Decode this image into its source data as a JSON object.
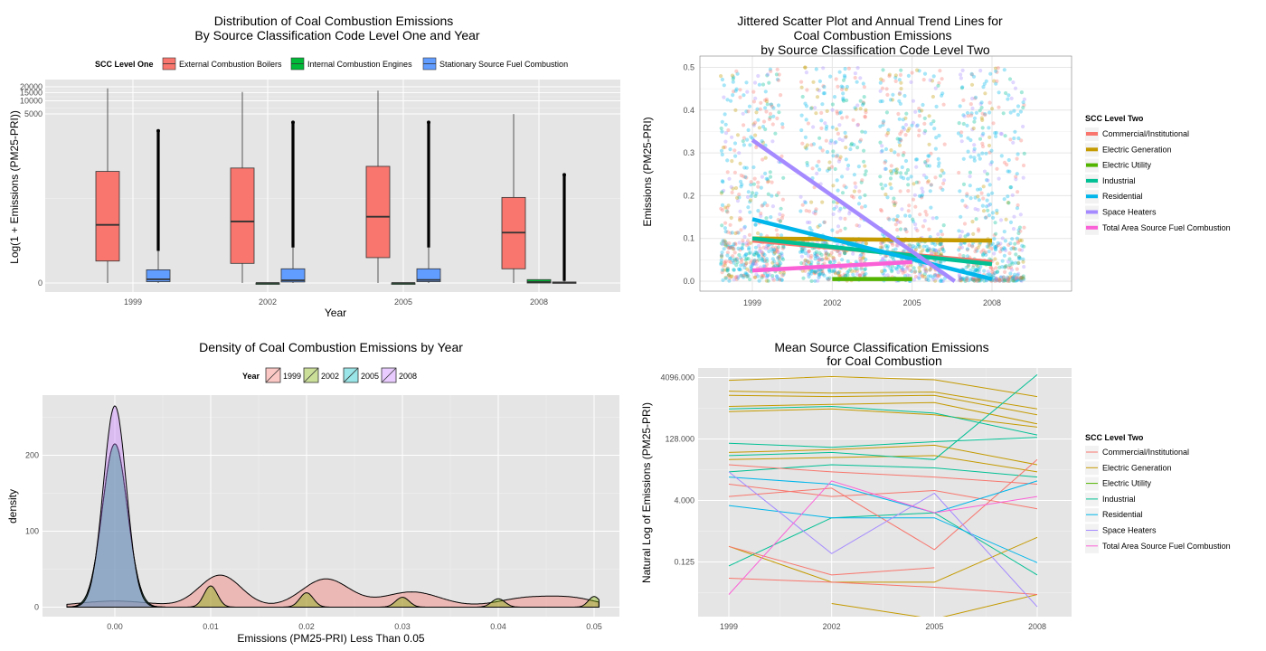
{
  "chart_data": [
    {
      "type": "box",
      "title": "Distribution of Coal Combustion Emissions",
      "subtitle": "By Source Classification Code Level One and Year",
      "xlabel": "Year",
      "ylabel": "Log(1 + Emissions (PM25-PRI))",
      "categories": [
        "1999",
        "2002",
        "2005",
        "2008"
      ],
      "yticks": [
        "0",
        "5000",
        "10000",
        "15000",
        "20000"
      ],
      "legend": {
        "title": "SCC Level One",
        "position": "top",
        "entries": [
          {
            "label": "External Combustion Boilers",
            "color": "#f8766d"
          },
          {
            "label": "Internal Combustion Engines",
            "color": "#00ba38"
          },
          {
            "label": "Stationary Source Fuel Combustion",
            "color": "#619cff"
          }
        ]
      },
      "series": [
        {
          "name": "External Combustion Boilers",
          "color": "#f8766d",
          "boxes": [
            {
              "year": "1999",
              "min": 0,
              "q1": 650,
              "median": 1720,
              "q3": 3300,
              "max": 18500
            },
            {
              "year": "2002",
              "min": 0,
              "q1": 580,
              "median": 1820,
              "q3": 3400,
              "max": 15500
            },
            {
              "year": "2005",
              "min": 0,
              "q1": 750,
              "median": 1960,
              "q3": 3450,
              "max": 16500
            },
            {
              "year": "2008",
              "min": 0,
              "q1": 420,
              "median": 1490,
              "q3": 2530,
              "max": 5200
            }
          ]
        },
        {
          "name": "Internal Combustion Engines",
          "color": "#00ba38",
          "boxes": [
            {
              "year": "2002",
              "min": 0,
              "q1": 0,
              "median": 0,
              "q3": 0,
              "max": 0
            },
            {
              "year": "2005",
              "min": 0,
              "q1": 0,
              "median": 0,
              "q3": 0,
              "max": 0
            },
            {
              "year": "2008",
              "min": 0,
              "q1": 0,
              "median": 30,
              "q3": 100,
              "max": 100
            }
          ]
        },
        {
          "name": "Stationary Source Fuel Combustion",
          "color": "#619cff",
          "boxes": [
            {
              "year": "1999",
              "min": 0,
              "q1": 40,
              "median": 110,
              "q3": 390,
              "max": 950,
              "outlier_max": 4500
            },
            {
              "year": "2002",
              "min": 0,
              "q1": 30,
              "median": 80,
              "q3": 420,
              "max": 1050,
              "outlier_max": 4750
            },
            {
              "year": "2005",
              "min": 0,
              "q1": 40,
              "median": 90,
              "q3": 420,
              "max": 1050,
              "outlier_max": 4750
            },
            {
              "year": "2008",
              "min": 0,
              "q1": 0,
              "median": 10,
              "q3": 30,
              "max": 60,
              "outlier_max": 3200
            }
          ]
        }
      ]
    },
    {
      "type": "scatter",
      "title": "Jittered Scatter Plot and Annual Trend Lines for",
      "subtitle": "Coal Combustion Emissions",
      "subtitle2": "by Source Classification Code Level Two",
      "xlabel": "",
      "ylabel": "Emissions (PM25-PRI)",
      "xticks": [
        "1999",
        "2002",
        "2005",
        "2008"
      ],
      "yticks": [
        "0.0",
        "0.1",
        "0.2",
        "0.3",
        "0.4",
        "0.5"
      ],
      "ylim": [
        0,
        0.5
      ],
      "legend": {
        "title": "SCC Level Two",
        "position": "right",
        "entries": [
          {
            "label": "Commercial/Institutional",
            "color": "#f8766d"
          },
          {
            "label": "Electric Generation",
            "color": "#c49a00"
          },
          {
            "label": "Electric Utility",
            "color": "#53b400"
          },
          {
            "label": "Industrial",
            "color": "#00c094"
          },
          {
            "label": "Residential",
            "color": "#00b6eb"
          },
          {
            "label": "Space Heaters",
            "color": "#a58aff"
          },
          {
            "label": "Total Area Source Fuel Combustion",
            "color": "#fb61d7"
          }
        ]
      },
      "trend_lines": [
        {
          "name": "Commercial/Institutional",
          "color": "#f8766d",
          "x": [
            1999,
            2008
          ],
          "y": [
            0.095,
            0.045
          ]
        },
        {
          "name": "Electric Generation",
          "color": "#c49a00",
          "x": [
            1999,
            2008
          ],
          "y": [
            0.1,
            0.095
          ]
        },
        {
          "name": "Electric Utility",
          "color": "#53b400",
          "x": [
            2002,
            2005
          ],
          "y": [
            0.005,
            0.005
          ]
        },
        {
          "name": "Industrial",
          "color": "#00c094",
          "x": [
            1999,
            2008
          ],
          "y": [
            0.1,
            0.04
          ]
        },
        {
          "name": "Residential",
          "color": "#00b6eb",
          "x": [
            1999,
            2008
          ],
          "y": [
            0.145,
            0.005
          ]
        },
        {
          "name": "Space Heaters",
          "color": "#a58aff",
          "x": [
            1999,
            2006.6
          ],
          "y": [
            0.33,
            0.0
          ]
        },
        {
          "name": "Total Area Source Fuel Combustion",
          "color": "#fb61d7",
          "x": [
            1999,
            2005
          ],
          "y": [
            0.025,
            0.045
          ]
        }
      ]
    },
    {
      "type": "area",
      "title": "Density of Coal Combustion Emissions by Year",
      "xlabel": "Emissions (PM25-PRI) Less Than 0.05",
      "ylabel": "density",
      "xticks": [
        "0.00",
        "0.01",
        "0.02",
        "0.03",
        "0.04",
        "0.05"
      ],
      "yticks": [
        "0",
        "100",
        "200"
      ],
      "xlim": [
        -0.0048,
        0.0505
      ],
      "ylim": [
        -14,
        276
      ],
      "legend": {
        "title": "Year",
        "position": "top",
        "entries": [
          {
            "label": "1999",
            "color": "#f8766d"
          },
          {
            "label": "2002",
            "color": "#7cae00"
          },
          {
            "label": "2005",
            "color": "#00bfc4"
          },
          {
            "label": "2008",
            "color": "#c77cff"
          }
        ]
      },
      "series": [
        {
          "name": "1999",
          "color": "#f8766d",
          "peaks": [
            [
              0.0,
              8,
              0.004
            ],
            [
              0.011,
              42,
              0.0022
            ],
            [
              0.022,
              37,
              0.0025
            ],
            [
              0.031,
              20,
              0.003
            ],
            [
              0.043,
              12,
              0.003
            ],
            [
              0.048,
              10,
              0.0025
            ]
          ]
        },
        {
          "name": "2002",
          "color": "#7cae00",
          "peaks": [
            [
              0.0,
              215,
              0.0013
            ],
            [
              0.01,
              28,
              0.0007
            ],
            [
              0.02,
              19,
              0.0007
            ],
            [
              0.03,
              13,
              0.0007
            ],
            [
              0.04,
              11,
              0.0007
            ],
            [
              0.05,
              14,
              0.0006
            ]
          ]
        },
        {
          "name": "2005",
          "color": "#00bfc4",
          "peaks": [
            [
              0.0,
              215,
              0.0013
            ]
          ]
        },
        {
          "name": "2008",
          "color": "#c77cff",
          "peaks": [
            [
              0.0,
              265,
              0.0012
            ]
          ]
        }
      ]
    },
    {
      "type": "line",
      "title": "Mean Source Classification Emissions",
      "subtitle": "for Coal Combustion",
      "xlabel": "",
      "ylabel": "Natural Log of Emissions (PM25-PRI)",
      "xticks": [
        "1999",
        "2002",
        "2005",
        "2008"
      ],
      "yticks": [
        "0.125",
        "4.000",
        "128.000",
        "4096.000"
      ],
      "y_scale": "log2",
      "legend": {
        "title": "SCC Level Two",
        "position": "right",
        "entries": [
          {
            "label": "Commercial/Institutional",
            "color": "#f8766d"
          },
          {
            "label": "Electric Generation",
            "color": "#c49a00"
          },
          {
            "label": "Electric Utility",
            "color": "#53b400"
          },
          {
            "label": "Industrial",
            "color": "#00c094"
          },
          {
            "label": "Residential",
            "color": "#00b6eb"
          },
          {
            "label": "Space Heaters",
            "color": "#a58aff"
          },
          {
            "label": "Total Area Source Fuel Combustion",
            "color": "#fb61d7"
          }
        ]
      },
      "series": [
        {
          "name": "Electric Generation",
          "color": "#c49a00",
          "values": [
            1900,
            1700,
            1800,
            700
          ]
        },
        {
          "name": "Electric Generation",
          "color": "#c49a00",
          "values": [
            1500,
            1400,
            1500,
            500
          ]
        },
        {
          "name": "Electric Generation",
          "color": "#c49a00",
          "values": [
            800,
            900,
            1000,
            300
          ]
        },
        {
          "name": "Electric Generation",
          "color": "#c49a00",
          "values": [
            3500,
            4300,
            3600,
            1400
          ]
        },
        {
          "name": "Electric Generation",
          "color": "#c49a00",
          "values": [
            600,
            700,
            500,
            250
          ]
        },
        {
          "name": "Electric Generation",
          "color": "#c49a00",
          "values": [
            60,
            70,
            90,
            30
          ]
        },
        {
          "name": "Electric Generation",
          "color": "#c49a00",
          "values": [
            40,
            45,
            50,
            20
          ]
        },
        {
          "name": "Electric Generation",
          "color": "#c49a00",
          "values": [
            0.3,
            0.04,
            0.04,
            0.5
          ]
        },
        {
          "name": "Electric Generation",
          "color": "#c49a00",
          "values": [
            null,
            0.012,
            0.005,
            0.02
          ]
        },
        {
          "name": "Electric Utility",
          "color": "#53b400",
          "values": [
            null,
            0.0015,
            0.0015,
            null
          ]
        },
        {
          "name": "Industrial",
          "color": "#00c094",
          "values": [
            100,
            80,
            110,
            140
          ]
        },
        {
          "name": "Industrial",
          "color": "#00c094",
          "values": [
            50,
            60,
            40,
            4800
          ]
        },
        {
          "name": "Industrial",
          "color": "#00c094",
          "values": [
            20,
            30,
            25,
            15
          ]
        },
        {
          "name": "Industrial",
          "color": "#00c094",
          "values": [
            0.1,
            1.5,
            2.0,
            0.06
          ]
        },
        {
          "name": "Industrial",
          "color": "#00c094",
          "values": [
            700,
            800,
            550,
            160
          ]
        },
        {
          "name": "Commercial/Institutional",
          "color": "#f8766d",
          "values": [
            30,
            20,
            15,
            10
          ]
        },
        {
          "name": "Commercial/Institutional",
          "color": "#f8766d",
          "values": [
            10,
            5,
            7,
            2.5
          ]
        },
        {
          "name": "Commercial/Institutional",
          "color": "#f8766d",
          "values": [
            0.3,
            0.06,
            0.09,
            null
          ]
        },
        {
          "name": "Commercial/Institutional",
          "color": "#f8766d",
          "values": [
            0.05,
            0.04,
            0.03,
            0.02
          ]
        },
        {
          "name": "Commercial/Institutional",
          "color": "#f8766d",
          "values": [
            5,
            8,
            0.25,
            40
          ]
        },
        {
          "name": "Residential",
          "color": "#00b6eb",
          "values": [
            3,
            1.5,
            1.5,
            0.12
          ]
        },
        {
          "name": "Residential",
          "color": "#00b6eb",
          "values": [
            15,
            10,
            2,
            12
          ]
        },
        {
          "name": "Space Heaters",
          "color": "#a58aff",
          "values": [
            20,
            0.2,
            6,
            0.01
          ]
        },
        {
          "name": "Total Area Source Fuel Combustion",
          "color": "#fb61d7",
          "values": [
            0.02,
            12,
            2,
            5
          ]
        }
      ]
    }
  ]
}
